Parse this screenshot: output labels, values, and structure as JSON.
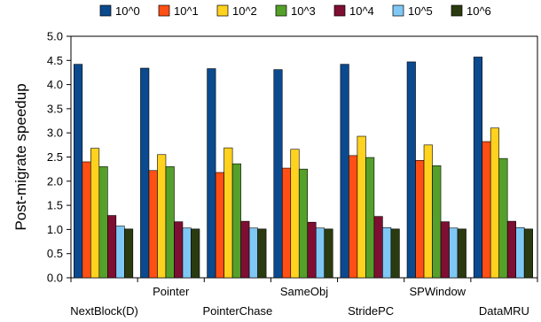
{
  "chart_data": {
    "type": "bar",
    "ylabel": "Post-migrate speedup",
    "xlabel": "",
    "ylim": [
      0,
      5
    ],
    "ytick_step": 0.5,
    "grid": false,
    "legend_position": "top",
    "categories": [
      "NextBlock(D)",
      "Pointer",
      "PointerChase",
      "SameObj",
      "StridePC",
      "SPWindow",
      "DataMRU"
    ],
    "series": [
      {
        "name": "10^0",
        "color": "#0b4a8f",
        "values": [
          4.42,
          4.34,
          4.33,
          4.31,
          4.42,
          4.47,
          4.57
        ]
      },
      {
        "name": "10^1",
        "color": "#ff4f14",
        "values": [
          2.4,
          2.22,
          2.18,
          2.27,
          2.53,
          2.43,
          2.82
        ]
      },
      {
        "name": "10^2",
        "color": "#ffd21f",
        "values": [
          2.68,
          2.55,
          2.69,
          2.66,
          2.93,
          2.75,
          3.1
        ]
      },
      {
        "name": "10^3",
        "color": "#55a02a",
        "values": [
          2.3,
          2.3,
          2.36,
          2.25,
          2.49,
          2.32,
          2.47
        ]
      },
      {
        "name": "10^4",
        "color": "#7f0e33",
        "values": [
          1.29,
          1.16,
          1.17,
          1.15,
          1.27,
          1.16,
          1.17
        ]
      },
      {
        "name": "10^5",
        "color": "#7fc8f5",
        "values": [
          1.07,
          1.03,
          1.03,
          1.03,
          1.04,
          1.03,
          1.04
        ]
      },
      {
        "name": "10^6",
        "color": "#2b3b10",
        "values": [
          1.01,
          1.01,
          1.01,
          1.01,
          1.01,
          1.01,
          1.01
        ]
      }
    ]
  }
}
